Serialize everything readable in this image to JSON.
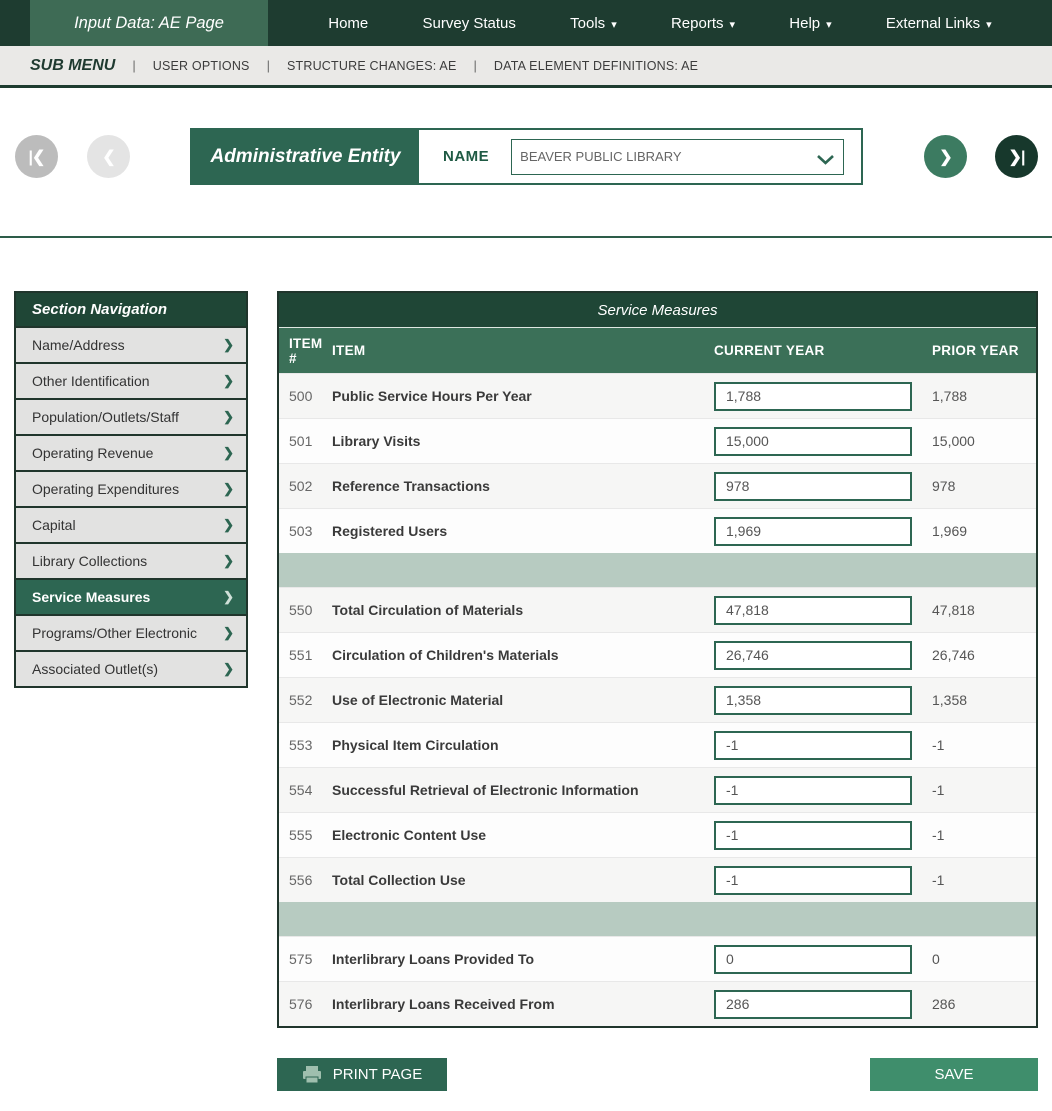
{
  "topnav": {
    "active_tab": "Input Data: AE Page",
    "items": [
      {
        "label": "Home",
        "has_dropdown": false
      },
      {
        "label": "Survey Status",
        "has_dropdown": false
      },
      {
        "label": "Tools",
        "has_dropdown": true
      },
      {
        "label": "Reports",
        "has_dropdown": true
      },
      {
        "label": "Help",
        "has_dropdown": true
      },
      {
        "label": "External Links",
        "has_dropdown": true
      }
    ]
  },
  "submenu": {
    "title": "SUB MENU",
    "items": [
      "USER OPTIONS",
      "STRUCTURE CHANGES: AE",
      "DATA ELEMENT DEFINITIONS: AE"
    ]
  },
  "entity": {
    "panel_label": "Administrative Entity",
    "name_label": "NAME",
    "selected_name": "BEAVER PUBLIC LIBRARY",
    "pager_icons": {
      "first": "|❮",
      "prev": "❮",
      "next": "❯",
      "last": "❯|"
    }
  },
  "sidebar": {
    "title": "Section Navigation",
    "active": "Service Measures",
    "items": [
      {
        "label": "Name/Address"
      },
      {
        "label": "Other Identification"
      },
      {
        "label": "Population/Outlets/Staff"
      },
      {
        "label": "Operating Revenue"
      },
      {
        "label": "Operating Expenditures"
      },
      {
        "label": "Capital"
      },
      {
        "label": "Library Collections"
      },
      {
        "label": "Service Measures"
      },
      {
        "label": "Programs/Other Electronic"
      },
      {
        "label": "Associated Outlet(s)"
      }
    ]
  },
  "table": {
    "title": "Service Measures",
    "columns": [
      "ITEM #",
      "ITEM",
      "CURRENT YEAR",
      "PRIOR YEAR"
    ],
    "rows": [
      {
        "type": "data",
        "num": "500",
        "label": "Public Service Hours Per Year",
        "current": "1,788",
        "prior": "1,788"
      },
      {
        "type": "data",
        "num": "501",
        "label": "Library Visits",
        "current": "15,000",
        "prior": "15,000"
      },
      {
        "type": "data",
        "num": "502",
        "label": "Reference Transactions",
        "current": "978",
        "prior": "978"
      },
      {
        "type": "data",
        "num": "503",
        "label": "Registered Users",
        "current": "1,969",
        "prior": "1,969"
      },
      {
        "type": "spacer"
      },
      {
        "type": "data",
        "num": "550",
        "label": "Total Circulation of Materials",
        "current": "47,818",
        "prior": "47,818"
      },
      {
        "type": "data",
        "num": "551",
        "label": "Circulation of Children's Materials",
        "current": "26,746",
        "prior": "26,746"
      },
      {
        "type": "data",
        "num": "552",
        "label": "Use of Electronic Material",
        "current": "1,358",
        "prior": "1,358"
      },
      {
        "type": "data",
        "num": "553",
        "label": "Physical Item Circulation",
        "current": "-1",
        "prior": "-1"
      },
      {
        "type": "data",
        "num": "554",
        "label": "Successful Retrieval of Electronic Information",
        "current": "-1",
        "prior": "-1"
      },
      {
        "type": "data",
        "num": "555",
        "label": "Electronic Content Use",
        "current": "-1",
        "prior": "-1"
      },
      {
        "type": "data",
        "num": "556",
        "label": "Total Collection Use",
        "current": "-1",
        "prior": "-1"
      },
      {
        "type": "spacer"
      },
      {
        "type": "data",
        "num": "575",
        "label": "Interlibrary Loans Provided To",
        "current": "0",
        "prior": "0"
      },
      {
        "type": "data",
        "num": "576",
        "label": "Interlibrary Loans Received From",
        "current": "286",
        "prior": "286"
      }
    ]
  },
  "footer": {
    "print_label": "PRINT PAGE",
    "save_label": "SAVE"
  },
  "colors": {
    "topbar_green": "#1e3c30",
    "active_tab_green": "#3e6b55",
    "panel_header_green": "#1f4636",
    "column_header_green": "#3b7058",
    "accent_green": "#2d6652",
    "save_green": "#3f8e6c",
    "spacer_sage": "#b7cbc1",
    "submenu_gray": "#eae9e7",
    "sidebar_item_gray": "#e2e2e1"
  }
}
